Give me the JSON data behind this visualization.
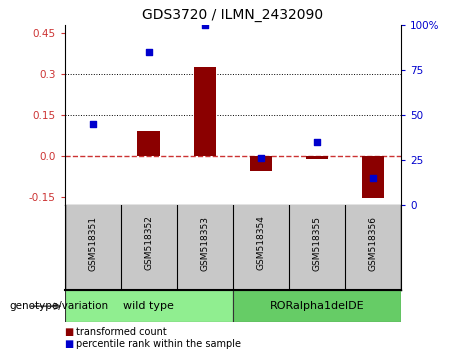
{
  "title": "GDS3720 / ILMN_2432090",
  "samples": [
    "GSM518351",
    "GSM518352",
    "GSM518353",
    "GSM518354",
    "GSM518355",
    "GSM518356"
  ],
  "transformed_count": [
    0.002,
    0.09,
    0.325,
    -0.055,
    -0.012,
    -0.155
  ],
  "percentile_rank": [
    45,
    85,
    100,
    26,
    35,
    15
  ],
  "ylim_left": [
    -0.18,
    0.48
  ],
  "ylim_right": [
    0,
    100
  ],
  "yticks_left": [
    -0.15,
    0.0,
    0.15,
    0.3,
    0.45
  ],
  "yticks_right": [
    0,
    25,
    50,
    75,
    100
  ],
  "hlines": [
    0.15,
    0.3
  ],
  "bar_color": "#8B0000",
  "dot_color": "#0000CD",
  "zero_line_color": "#CC3333",
  "groups": [
    {
      "label": "wild type",
      "indices": [
        0,
        1,
        2
      ],
      "color": "#90EE90"
    },
    {
      "label": "RORalpha1delDE",
      "indices": [
        3,
        4,
        5
      ],
      "color": "#66CC66"
    }
  ],
  "group_label": "genotype/variation",
  "legend_entries": [
    "transformed count",
    "percentile rank within the sample"
  ],
  "plot_bg": "#FFFFFF",
  "title_fontsize": 10,
  "label_bg": "#C8C8C8",
  "bar_width": 0.4
}
